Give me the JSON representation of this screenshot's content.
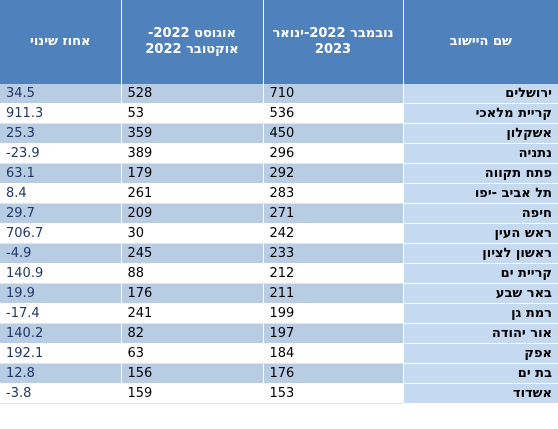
{
  "table": {
    "headers": {
      "city": "שם היישוב",
      "nov_jan": "נובמבר 2022-ינואר 2023",
      "aug_oct": "אוגוסט 2022-אוקטובר 2022",
      "pct_change": "אחוז שינוי"
    },
    "rows": [
      {
        "city": "ירושלים",
        "nov_jan": "710",
        "aug_oct": "528",
        "pct_change": "34.5"
      },
      {
        "city": "קריית מלאכי",
        "nov_jan": "536",
        "aug_oct": "53",
        "pct_change": "911.3"
      },
      {
        "city": "אשקלון",
        "nov_jan": "450",
        "aug_oct": "359",
        "pct_change": "25.3"
      },
      {
        "city": "נתניה",
        "nov_jan": "296",
        "aug_oct": "389",
        "pct_change": "-23.9"
      },
      {
        "city": "פתח תקווה",
        "nov_jan": "292",
        "aug_oct": "179",
        "pct_change": "63.1"
      },
      {
        "city": "תל אביב -יפו",
        "nov_jan": "283",
        "aug_oct": "261",
        "pct_change": "8.4"
      },
      {
        "city": "חיפה",
        "nov_jan": "271",
        "aug_oct": "209",
        "pct_change": "29.7"
      },
      {
        "city": "ראש העין",
        "nov_jan": "242",
        "aug_oct": "30",
        "pct_change": "706.7"
      },
      {
        "city": "ראשון לציון",
        "nov_jan": "233",
        "aug_oct": "245",
        "pct_change": "-4.9"
      },
      {
        "city": "קריית ים",
        "nov_jan": "212",
        "aug_oct": "88",
        "pct_change": "140.9"
      },
      {
        "city": "באר שבע",
        "nov_jan": "211",
        "aug_oct": "176",
        "pct_change": "19.9"
      },
      {
        "city": "רמת גן",
        "nov_jan": "199",
        "aug_oct": "241",
        "pct_change": "-17.4"
      },
      {
        "city": "אור יהודה",
        "nov_jan": "197",
        "aug_oct": "82",
        "pct_change": "140.2"
      },
      {
        "city": "אפק",
        "nov_jan": "184",
        "aug_oct": "63",
        "pct_change": "192.1"
      },
      {
        "city": "בת ים",
        "nov_jan": "176",
        "aug_oct": "156",
        "pct_change": "12.8"
      },
      {
        "city": "אשדוד",
        "nov_jan": "153",
        "aug_oct": "159",
        "pct_change": "-3.8"
      }
    ]
  }
}
